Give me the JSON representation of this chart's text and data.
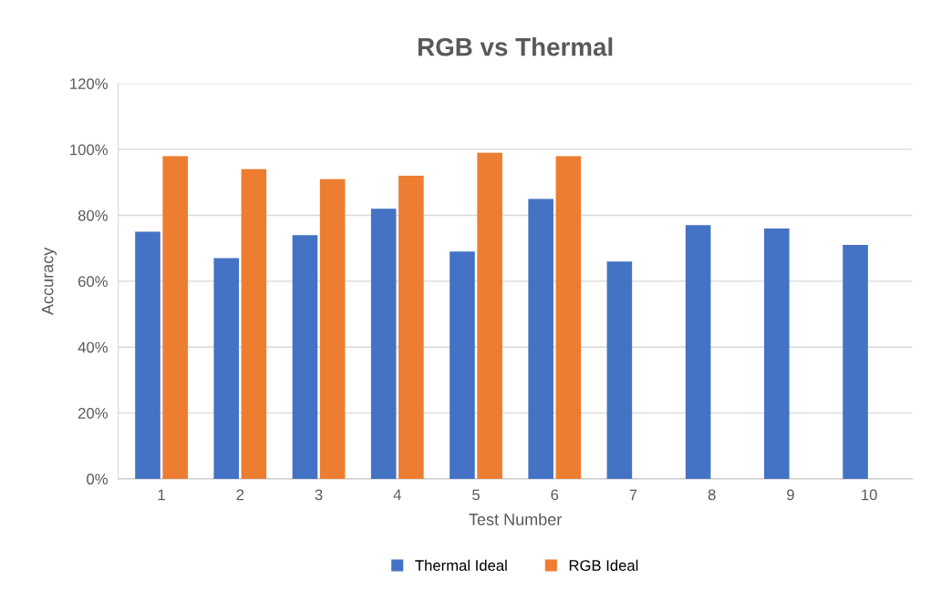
{
  "chart_data": {
    "type": "bar",
    "title": "RGB vs Thermal",
    "xlabel": "Test Number",
    "ylabel": "Accuracy",
    "categories": [
      "1",
      "2",
      "3",
      "4",
      "5",
      "6",
      "7",
      "8",
      "9",
      "10"
    ],
    "series": [
      {
        "name": "Thermal Ideal",
        "color": "#4472c4",
        "values": [
          75,
          67,
          74,
          82,
          69,
          85,
          66,
          77,
          76,
          71
        ]
      },
      {
        "name": "RGB Ideal",
        "color": "#ed7d31",
        "values": [
          98,
          94,
          91,
          92,
          99,
          98,
          null,
          null,
          null,
          null
        ]
      }
    ],
    "ylim": [
      0,
      120
    ],
    "yticks": [
      {
        "value": 0,
        "label": "0%"
      },
      {
        "value": 20,
        "label": "20%"
      },
      {
        "value": 40,
        "label": "40%"
      },
      {
        "value": 60,
        "label": "60%"
      },
      {
        "value": 80,
        "label": "80%"
      },
      {
        "value": 100,
        "label": "100%"
      },
      {
        "value": 120,
        "label": "120%"
      }
    ],
    "grid": "y",
    "legend": "bottom"
  }
}
